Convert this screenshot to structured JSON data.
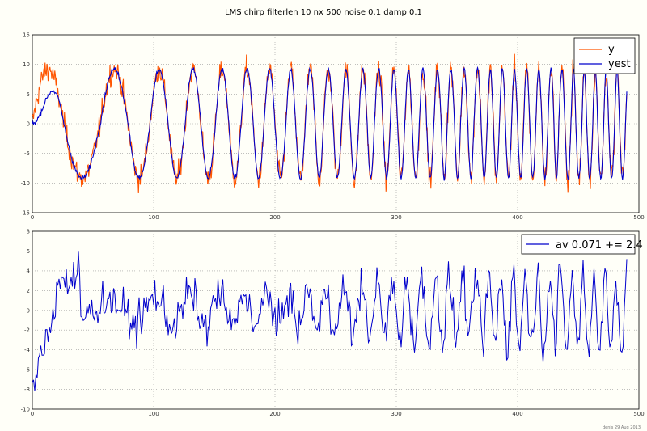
{
  "title": "LMS  chirp  filterlen 10  nx 500  noise 0.1  damp 0.1",
  "credit": "denis 29 Aug 2013",
  "colors": {
    "y": "#ff5500",
    "yest": "#0000cc",
    "err": "#0000cc",
    "grid": "#999999",
    "background": "#fffff8"
  },
  "chart_data": [
    {
      "type": "line",
      "xlim": [
        0,
        500
      ],
      "ylim": [
        -15,
        15
      ],
      "xticks": [
        0,
        100,
        200,
        300,
        400,
        500
      ],
      "yticks": [
        -15,
        -10,
        -5,
        0,
        5,
        10,
        15
      ],
      "grid": true,
      "legend_position": "top-right",
      "chirp": {
        "amplitude": 9.2,
        "x_end": 490,
        "zero_crossings": [
          0,
          26,
          56,
          79,
          97,
          112,
          126,
          139,
          151,
          162,
          172,
          182,
          191,
          200,
          209,
          217,
          225,
          233,
          240,
          248,
          255,
          262,
          269,
          276,
          282,
          289,
          295,
          301,
          307,
          313,
          319,
          325,
          331,
          337,
          342,
          348,
          353,
          359,
          364,
          370,
          375,
          380,
          385,
          390,
          395,
          400,
          405,
          410,
          415,
          420,
          425,
          430,
          434,
          439,
          444,
          448,
          453,
          457,
          462,
          466,
          471,
          475,
          480,
          484,
          489
        ]
      },
      "series": [
        {
          "name": "y",
          "noise": 1.0
        },
        {
          "name": "yest",
          "noise": 0.2
        }
      ]
    },
    {
      "type": "line",
      "xlim": [
        0,
        500
      ],
      "ylim": [
        -10,
        8
      ],
      "xticks": [
        0,
        100,
        200,
        300,
        400,
        500
      ],
      "yticks": [
        -10,
        -8,
        -6,
        -4,
        -2,
        0,
        2,
        4,
        6,
        8
      ],
      "grid": true,
      "legend_position": "top-right",
      "series": [
        {
          "name": "av 0.071 += 2.4",
          "mean": 0.071,
          "std": 2.4
        }
      ]
    }
  ]
}
